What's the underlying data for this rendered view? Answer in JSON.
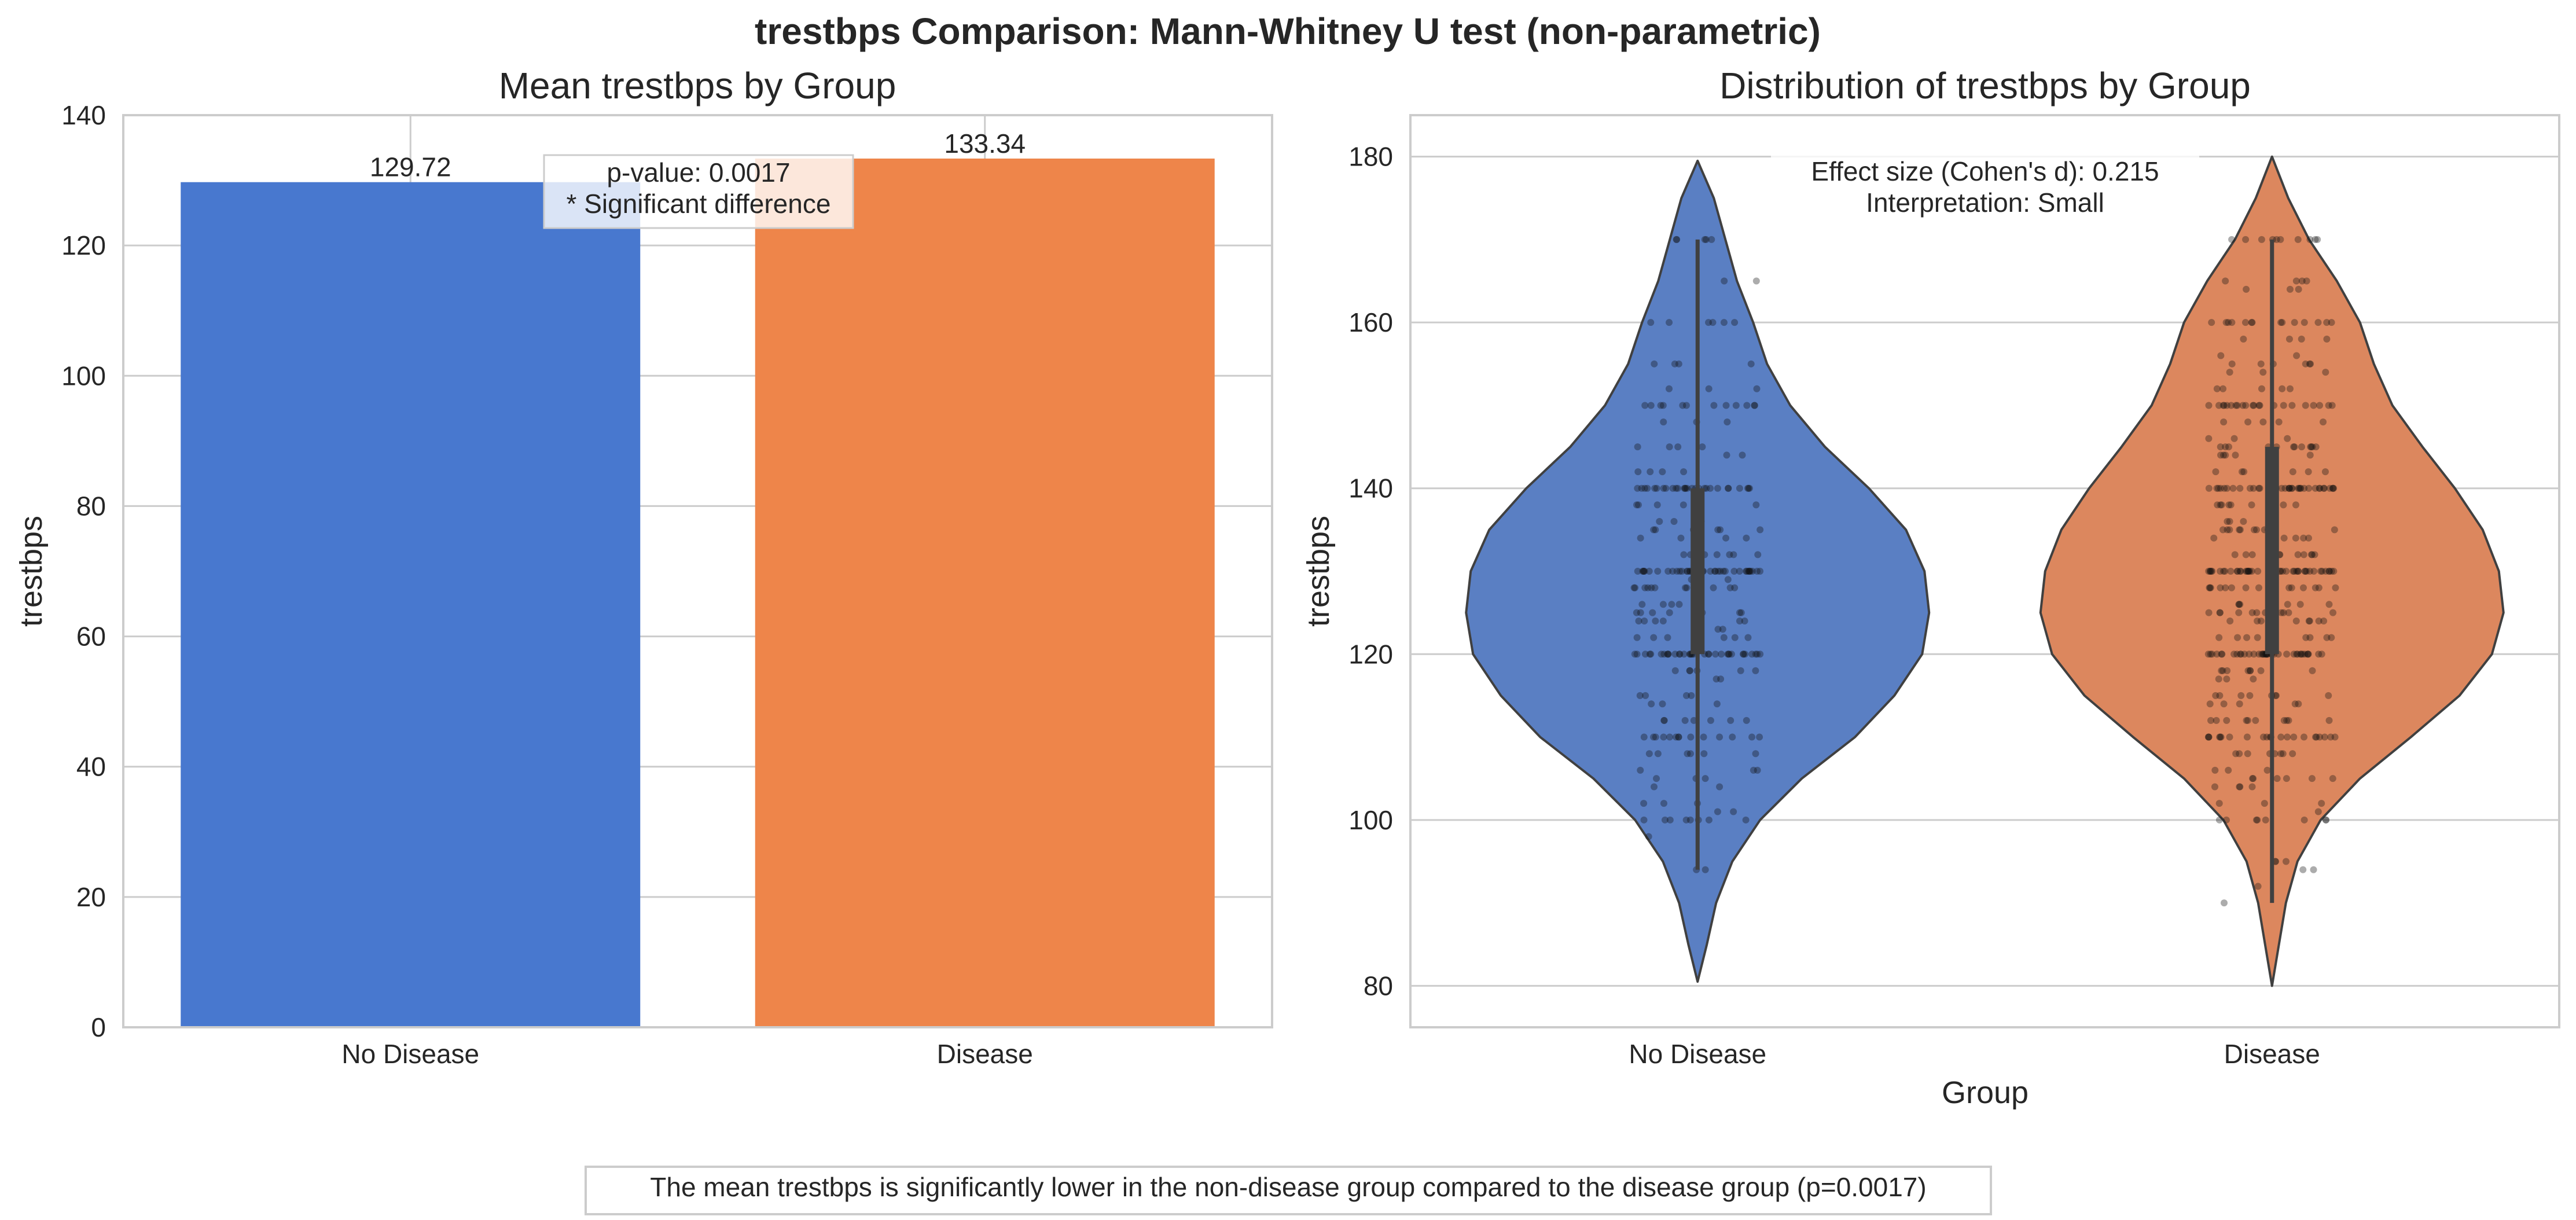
{
  "figure_title": "trestbps Comparison: Mann-Whitney U test (non-parametric)",
  "footer_note": "The mean trestbps is significantly lower in the non-disease group compared to the disease group (p=0.0017)",
  "colors": {
    "no_disease": "#4878cf",
    "disease": "#ee854a",
    "no_disease_violin": "#5a7fc3",
    "disease_violin": "#dc875e"
  },
  "chart_data": [
    {
      "type": "bar",
      "title": "Mean trestbps by Group",
      "xlabel": "",
      "ylabel": "trestbps",
      "categories": [
        "No Disease",
        "Disease"
      ],
      "values": [
        129.72,
        133.34
      ],
      "value_labels": [
        "129.72",
        "133.34"
      ],
      "ylim": [
        0,
        140
      ],
      "yticks": [
        0,
        20,
        40,
        60,
        80,
        100,
        120,
        140
      ],
      "grid": true,
      "annotation": {
        "line1": "p-value: 0.0017",
        "line2": "* Significant difference"
      }
    },
    {
      "type": "violin",
      "title": "Distribution of trestbps by Group",
      "xlabel": "Group",
      "ylabel": "trestbps",
      "categories": [
        "No Disease",
        "Disease"
      ],
      "ylim": [
        75,
        185
      ],
      "yticks": [
        80,
        100,
        120,
        140,
        160,
        180
      ],
      "grid": true,
      "annotation": {
        "line1": "Effect size (Cohen's d): 0.215",
        "line2": "Interpretation: Small"
      },
      "groups": [
        {
          "name": "No Disease",
          "min": 94,
          "max": 170,
          "q1": 120,
          "median": 130,
          "q3": 140,
          "violin_min": 80.5,
          "violin_max": 179.5,
          "density": [
            [
              80.5,
              0.0
            ],
            [
              85,
              0.04
            ],
            [
              90,
              0.08
            ],
            [
              95,
              0.15
            ],
            [
              100,
              0.27
            ],
            [
              105,
              0.45
            ],
            [
              110,
              0.68
            ],
            [
              115,
              0.85
            ],
            [
              120,
              0.97
            ],
            [
              125,
              1.0
            ],
            [
              130,
              0.98
            ],
            [
              135,
              0.9
            ],
            [
              140,
              0.74
            ],
            [
              145,
              0.55
            ],
            [
              150,
              0.4
            ],
            [
              155,
              0.3
            ],
            [
              160,
              0.24
            ],
            [
              165,
              0.17
            ],
            [
              170,
              0.12
            ],
            [
              175,
              0.07
            ],
            [
              179.5,
              0.0
            ]
          ],
          "points": [
            [
              94,
              2
            ],
            [
              98,
              1
            ],
            [
              100,
              8
            ],
            [
              101,
              2
            ],
            [
              102,
              3
            ],
            [
              104,
              2
            ],
            [
              105,
              3
            ],
            [
              106,
              3
            ],
            [
              108,
              6
            ],
            [
              110,
              14
            ],
            [
              112,
              7
            ],
            [
              114,
              3
            ],
            [
              115,
              4
            ],
            [
              117,
              2
            ],
            [
              118,
              6
            ],
            [
              120,
              35
            ],
            [
              122,
              6
            ],
            [
              123,
              2
            ],
            [
              124,
              6
            ],
            [
              125,
              8
            ],
            [
              126,
              5
            ],
            [
              128,
              12
            ],
            [
              129,
              2
            ],
            [
              130,
              40
            ],
            [
              132,
              8
            ],
            [
              134,
              4
            ],
            [
              135,
              6
            ],
            [
              136,
              3
            ],
            [
              138,
              6
            ],
            [
              140,
              28
            ],
            [
              142,
              4
            ],
            [
              144,
              2
            ],
            [
              145,
              4
            ],
            [
              148,
              3
            ],
            [
              150,
              12
            ],
            [
              152,
              3
            ],
            [
              155,
              4
            ],
            [
              160,
              6
            ],
            [
              165,
              2
            ],
            [
              170,
              5
            ]
          ]
        },
        {
          "name": "Disease",
          "min": 90,
          "max": 170,
          "q1": 120,
          "median": 130,
          "q3": 145,
          "violin_min": 80,
          "violin_max": 180,
          "density": [
            [
              80,
              0.0
            ],
            [
              85,
              0.03
            ],
            [
              90,
              0.06
            ],
            [
              95,
              0.11
            ],
            [
              100,
              0.21
            ],
            [
              105,
              0.38
            ],
            [
              110,
              0.6
            ],
            [
              115,
              0.81
            ],
            [
              120,
              0.95
            ],
            [
              125,
              1.0
            ],
            [
              130,
              0.98
            ],
            [
              135,
              0.91
            ],
            [
              140,
              0.79
            ],
            [
              145,
              0.65
            ],
            [
              150,
              0.52
            ],
            [
              155,
              0.44
            ],
            [
              160,
              0.38
            ],
            [
              165,
              0.28
            ],
            [
              170,
              0.16
            ],
            [
              175,
              0.07
            ],
            [
              180,
              0.0
            ]
          ],
          "points": [
            [
              90,
              1
            ],
            [
              92,
              1
            ],
            [
              94,
              2
            ],
            [
              95,
              3
            ],
            [
              100,
              8
            ],
            [
              101,
              1
            ],
            [
              102,
              3
            ],
            [
              104,
              4
            ],
            [
              105,
              6
            ],
            [
              106,
              3
            ],
            [
              108,
              8
            ],
            [
              110,
              22
            ],
            [
              112,
              10
            ],
            [
              114,
              5
            ],
            [
              115,
              8
            ],
            [
              117,
              3
            ],
            [
              118,
              8
            ],
            [
              120,
              40
            ],
            [
              122,
              8
            ],
            [
              124,
              8
            ],
            [
              125,
              12
            ],
            [
              126,
              6
            ],
            [
              128,
              14
            ],
            [
              130,
              45
            ],
            [
              132,
              10
            ],
            [
              134,
              5
            ],
            [
              135,
              10
            ],
            [
              136,
              4
            ],
            [
              138,
              8
            ],
            [
              140,
              38
            ],
            [
              142,
              6
            ],
            [
              144,
              5
            ],
            [
              145,
              12
            ],
            [
              146,
              3
            ],
            [
              148,
              5
            ],
            [
              150,
              22
            ],
            [
              152,
              5
            ],
            [
              154,
              3
            ],
            [
              155,
              6
            ],
            [
              156,
              2
            ],
            [
              158,
              4
            ],
            [
              160,
              14
            ],
            [
              164,
              3
            ],
            [
              165,
              4
            ],
            [
              170,
              10
            ]
          ]
        }
      ]
    }
  ]
}
